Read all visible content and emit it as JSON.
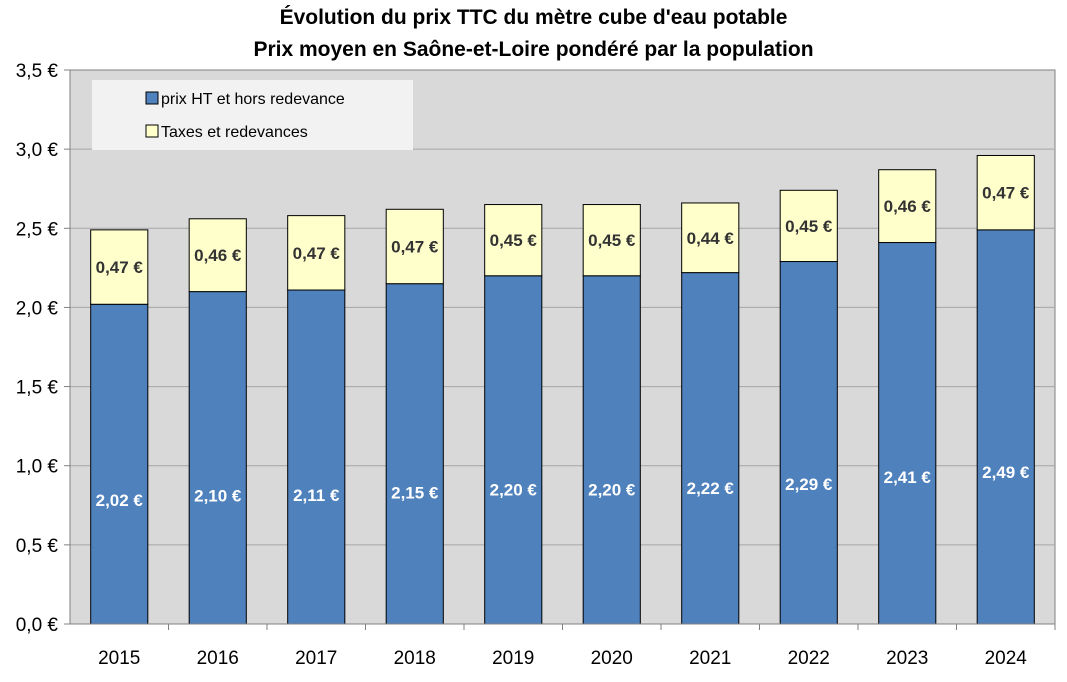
{
  "chart_data": {
    "type": "bar",
    "stacked": true,
    "title": "Évolution du prix TTC du mètre cube d'eau potable",
    "subtitle": "Prix moyen en Saône-et-Loire pondéré par la population",
    "categories": [
      "2015",
      "2016",
      "2017",
      "2018",
      "2019",
      "2020",
      "2021",
      "2022",
      "2023",
      "2024"
    ],
    "series": [
      {
        "name": "prix HT et hors redevance",
        "color": "#4f81bd",
        "values": [
          2.02,
          2.1,
          2.11,
          2.15,
          2.2,
          2.2,
          2.22,
          2.29,
          2.41,
          2.49
        ],
        "labels": [
          "2,02 €",
          "2,10 €",
          "2,11 €",
          "2,15 €",
          "2,20 €",
          "2,20 €",
          "2,22 €",
          "2,29 €",
          "2,41 €",
          "2,49 €"
        ],
        "label_color": "#ffffff"
      },
      {
        "name": "Taxes et redevances",
        "color": "#ffffcc",
        "values": [
          0.47,
          0.46,
          0.47,
          0.47,
          0.45,
          0.45,
          0.44,
          0.45,
          0.46,
          0.47
        ],
        "labels": [
          "0,47 €",
          "0,46 €",
          "0,47 €",
          "0,47 €",
          "0,45 €",
          "0,45 €",
          "0,44 €",
          "0,45 €",
          "0,46 €",
          "0,47 €"
        ],
        "label_color": "#333333"
      }
    ],
    "ylim": [
      0,
      3.5
    ],
    "yticks": [
      0,
      0.5,
      1.0,
      1.5,
      2.0,
      2.5,
      3.0,
      3.5
    ],
    "ytick_labels": [
      "0,0 €",
      "0,5 €",
      "1,0 €",
      "1,5 €",
      "2,0 €",
      "2,5 €",
      "3,0 €",
      "3,5 €"
    ],
    "xlabel": "",
    "ylabel": "",
    "grid": true,
    "legend_position": "top-left",
    "plot_background": "#d9d9d9",
    "legend_background": "#f2f2f2"
  }
}
